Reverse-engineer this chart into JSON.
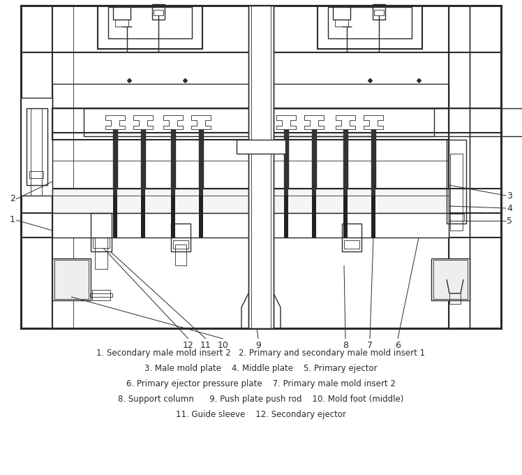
{
  "background_color": "#ffffff",
  "line_color": "#2a2a2a",
  "figure_width": 7.48,
  "figure_height": 6.8,
  "legend_lines": [
    "1. Secondary male mold insert 2   2. Primary and secondary male mold insert 1",
    "3. Male mold plate    4. Middle plate    5. Primary ejector",
    "6. Primary ejector pressure plate    7. Primary male mold insert 2",
    "8. Support column      9. Push plate push rod    10. Mold foot (middle)",
    "11. Guide sleeve    12. Secondary ejector"
  ]
}
